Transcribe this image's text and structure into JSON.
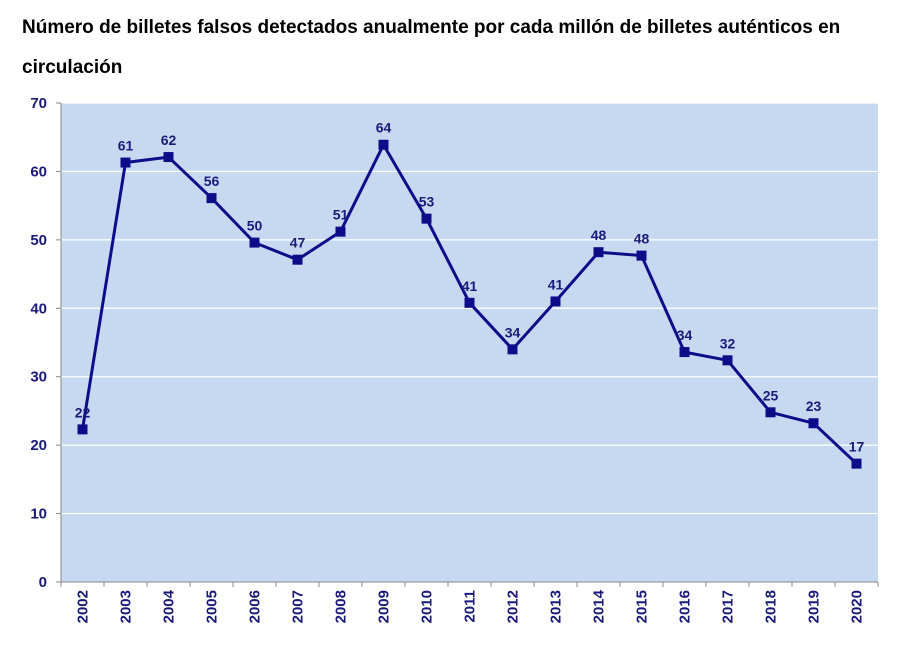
{
  "chart_data": {
    "type": "line",
    "title": "Número de billetes falsos detectados anualmente por cada millón de billetes auténticos en circulación",
    "xlabel": "",
    "ylabel": "",
    "ylim": [
      0,
      70
    ],
    "yticks": [
      "0",
      "10",
      "20",
      "30",
      "40",
      "50",
      "60",
      "70"
    ],
    "grid": true,
    "legend": "none",
    "categories": [
      "2002",
      "2003",
      "2004",
      "2005",
      "2006",
      "2007",
      "2008",
      "2009",
      "2010",
      "2011",
      "2012",
      "2013",
      "2014",
      "2015",
      "2016",
      "2017",
      "2018",
      "2019",
      "2020"
    ],
    "series": [
      {
        "values": [
          22.3,
          61.3,
          62.1,
          56.1,
          49.6,
          47.1,
          51.2,
          63.9,
          53.1,
          40.8,
          34.0,
          41.0,
          48.2,
          47.7,
          33.6,
          32.4,
          24.8,
          23.2,
          17.3
        ],
        "labels": [
          "22",
          "61",
          "62",
          "56",
          "50",
          "47",
          "51",
          "64",
          "53",
          "41",
          "34",
          "41",
          "48",
          "48",
          "34",
          "32",
          "25",
          "23",
          "17"
        ]
      }
    ],
    "colors": {
      "plot_background": "#c6d9f1",
      "line": "#0d0d8a",
      "text": "#1a1a7a",
      "grid": "#ffffff"
    }
  }
}
